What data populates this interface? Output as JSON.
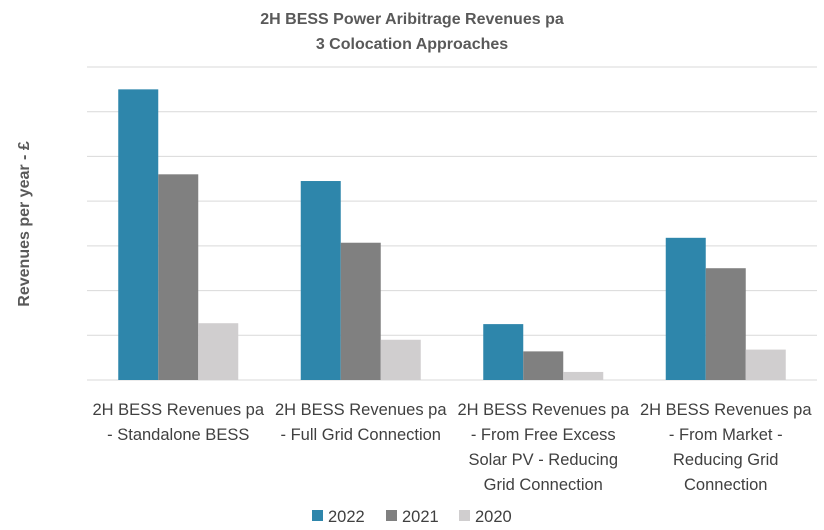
{
  "chart_data": {
    "type": "bar",
    "title": "2H BESS Power Aribitrage Revenues pa",
    "subtitle": "3 Colocation Approaches",
    "ylabel": "Revenues per year - £",
    "xlabel": "",
    "ylim": [
      0,
      7
    ],
    "grid": true,
    "legend_position": "bottom",
    "categories": [
      [
        "2H BESS Revenues pa",
        "- Standalone BESS"
      ],
      [
        "2H BESS Revenues pa",
        "- Full Grid Connection"
      ],
      [
        "2H BESS Revenues pa",
        "- From Free Excess",
        "Solar PV - Reducing",
        "Grid Connection"
      ],
      [
        "2H BESS Revenues pa",
        "- From Market -",
        "Reducing Grid",
        "Connection"
      ]
    ],
    "series": [
      {
        "name": "2022",
        "color": "#2e86ab",
        "values": [
          6.5,
          4.45,
          1.25,
          3.18
        ]
      },
      {
        "name": "2021",
        "color": "#808080",
        "values": [
          4.6,
          3.07,
          0.64,
          2.5
        ]
      },
      {
        "name": "2020",
        "color": "#d0cecf",
        "values": [
          1.27,
          0.9,
          0.18,
          0.68
        ]
      }
    ]
  }
}
